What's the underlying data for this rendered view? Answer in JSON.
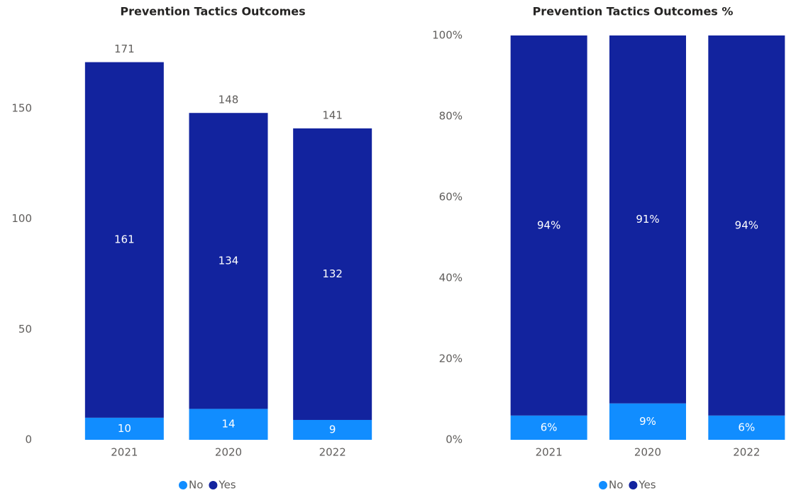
{
  "chart_data": [
    {
      "type": "stacked_bar",
      "title": "Prevention Tactics Outcomes",
      "categories": [
        "2021",
        "2020",
        "2022"
      ],
      "series": [
        {
          "name": "No",
          "color": "#118dff",
          "values": [
            10,
            14,
            9
          ]
        },
        {
          "name": "Yes",
          "color": "#12239e",
          "values": [
            161,
            134,
            132
          ]
        }
      ],
      "totals": [
        171,
        148,
        141
      ],
      "ylim": [
        0,
        180
      ],
      "yticks": [
        0,
        50,
        100,
        150
      ],
      "grid": false,
      "legend": "bottom"
    },
    {
      "type": "stacked_bar",
      "title": "Prevention Tactics Outcomes %",
      "categories": [
        "2021",
        "2020",
        "2022"
      ],
      "series": [
        {
          "name": "No",
          "color": "#118dff",
          "values": [
            6,
            9,
            6
          ],
          "value_labels": [
            "6%",
            "9%",
            "6%"
          ]
        },
        {
          "name": "Yes",
          "color": "#12239e",
          "values": [
            94,
            91,
            94
          ],
          "value_labels": [
            "94%",
            "91%",
            "94%"
          ]
        }
      ],
      "ylim": [
        0,
        100
      ],
      "yticks": [
        {
          "value": 0,
          "label": "0%"
        },
        {
          "value": 20,
          "label": "20%"
        },
        {
          "value": 40,
          "label": "40%"
        },
        {
          "value": 60,
          "label": "60%"
        },
        {
          "value": 80,
          "label": "80%"
        },
        {
          "value": 100,
          "label": "100%"
        }
      ],
      "grid": false,
      "legend": "bottom"
    }
  ]
}
